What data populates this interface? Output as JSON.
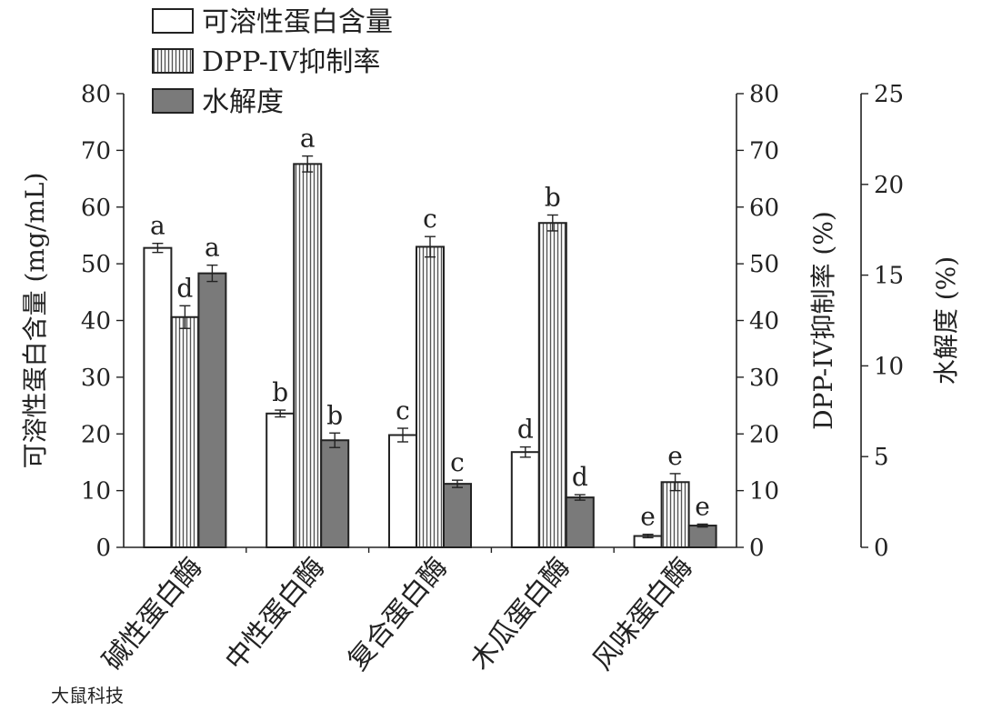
{
  "chart_data": {
    "type": "bar",
    "categories": [
      "碱性蛋白酶",
      "中性蛋白酶",
      "复合蛋白酶",
      "木瓜蛋白酶",
      "风味蛋白酶"
    ],
    "series": [
      {
        "name": "可溶性蛋白含量",
        "axis": "left",
        "values": [
          52.8,
          23.6,
          19.8,
          16.8,
          2.0
        ],
        "errors": [
          0.8,
          0.6,
          1.2,
          0.9,
          0.3
        ],
        "letters": [
          "a",
          "b",
          "c",
          "d",
          "e"
        ],
        "style": "white"
      },
      {
        "name": "DPP-IV抑制率",
        "axis": "right1",
        "values": [
          40.6,
          67.6,
          53.0,
          57.2,
          11.5
        ],
        "errors": [
          2.0,
          1.4,
          1.8,
          1.4,
          1.5
        ],
        "letters": [
          "d",
          "a",
          "c",
          "b",
          "e"
        ],
        "style": "hatched"
      },
      {
        "name": "水解度",
        "axis": "right2",
        "values": [
          15.1,
          5.9,
          3.5,
          2.75,
          1.2
        ],
        "errors": [
          0.45,
          0.4,
          0.2,
          0.15,
          0.08
        ],
        "letters": [
          "a",
          "b",
          "c",
          "d",
          "e"
        ],
        "style": "gray"
      }
    ],
    "axes": {
      "left": {
        "label": "可溶性蛋白含量 (mg/mL)",
        "ylim": [
          0,
          80
        ],
        "ticks": [
          0,
          10,
          20,
          30,
          40,
          50,
          60,
          70,
          80
        ]
      },
      "right1": {
        "label": "DPP-IV抑制率 (%)",
        "ylim": [
          0,
          80
        ],
        "ticks": [
          0,
          10,
          20,
          30,
          40,
          50,
          60,
          70,
          80
        ]
      },
      "right2": {
        "label": "水解度 (%)",
        "ylim": [
          0,
          25
        ],
        "ticks": [
          0,
          5,
          10,
          15,
          20,
          25
        ]
      }
    },
    "legend_position": "top-left",
    "grid": false
  },
  "watermark": "大鼠科技",
  "colors": {
    "gray_bar": "#7a7a7a",
    "outline": "#222222",
    "hatch": "#555555"
  }
}
